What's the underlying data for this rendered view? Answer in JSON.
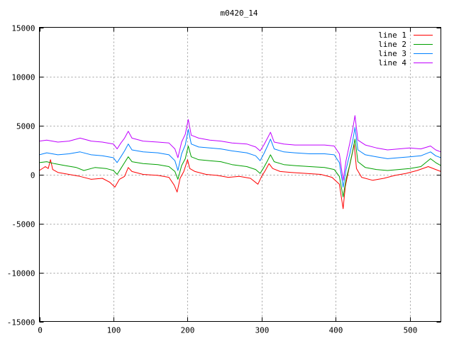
{
  "chart_data": {
    "type": "line",
    "title": "m0420_14",
    "xlabel": "",
    "ylabel": "",
    "xlim": [
      0,
      542
    ],
    "ylim": [
      -15000,
      15000
    ],
    "x_ticks": [
      0,
      100,
      200,
      300,
      400,
      500
    ],
    "y_ticks": [
      -15000,
      -10000,
      -5000,
      0,
      5000,
      10000,
      15000
    ],
    "grid": true,
    "legend_position": "top-right",
    "series": [
      {
        "name": "line 1",
        "color": "#ff0000",
        "points": [
          [
            0,
            400
          ],
          [
            8,
            800
          ],
          [
            12,
            600
          ],
          [
            15,
            1500
          ],
          [
            18,
            500
          ],
          [
            25,
            200
          ],
          [
            40,
            0
          ],
          [
            55,
            -200
          ],
          [
            70,
            -500
          ],
          [
            85,
            -400
          ],
          [
            95,
            -800
          ],
          [
            102,
            -1300
          ],
          [
            108,
            -500
          ],
          [
            115,
            -200
          ],
          [
            120,
            700
          ],
          [
            125,
            300
          ],
          [
            140,
            0
          ],
          [
            160,
            -100
          ],
          [
            175,
            -300
          ],
          [
            182,
            -1100
          ],
          [
            186,
            -1800
          ],
          [
            190,
            -400
          ],
          [
            195,
            300
          ],
          [
            200,
            1500
          ],
          [
            203,
            600
          ],
          [
            210,
            300
          ],
          [
            225,
            0
          ],
          [
            240,
            -100
          ],
          [
            255,
            -300
          ],
          [
            270,
            -200
          ],
          [
            285,
            -400
          ],
          [
            295,
            -1000
          ],
          [
            300,
            -200
          ],
          [
            305,
            400
          ],
          [
            310,
            1100
          ],
          [
            315,
            600
          ],
          [
            325,
            300
          ],
          [
            340,
            200
          ],
          [
            360,
            100
          ],
          [
            380,
            0
          ],
          [
            395,
            -300
          ],
          [
            405,
            -1000
          ],
          [
            410,
            -3500
          ],
          [
            413,
            -1200
          ],
          [
            418,
            600
          ],
          [
            422,
            2000
          ],
          [
            425,
            3100
          ],
          [
            428,
            600
          ],
          [
            435,
            -300
          ],
          [
            450,
            -600
          ],
          [
            465,
            -400
          ],
          [
            480,
            -100
          ],
          [
            495,
            100
          ],
          [
            510,
            400
          ],
          [
            525,
            800
          ],
          [
            535,
            500
          ],
          [
            542,
            300
          ]
        ]
      },
      {
        "name": "line 2",
        "color": "#00a000",
        "points": [
          [
            0,
            1200
          ],
          [
            10,
            1300
          ],
          [
            20,
            1100
          ],
          [
            35,
            900
          ],
          [
            50,
            700
          ],
          [
            60,
            400
          ],
          [
            75,
            700
          ],
          [
            90,
            600
          ],
          [
            100,
            400
          ],
          [
            105,
            0
          ],
          [
            110,
            600
          ],
          [
            115,
            1200
          ],
          [
            120,
            1800
          ],
          [
            125,
            1300
          ],
          [
            140,
            1100
          ],
          [
            160,
            1000
          ],
          [
            175,
            800
          ],
          [
            183,
            300
          ],
          [
            187,
            -500
          ],
          [
            192,
            900
          ],
          [
            197,
            1600
          ],
          [
            201,
            2900
          ],
          [
            205,
            1800
          ],
          [
            215,
            1500
          ],
          [
            230,
            1400
          ],
          [
            245,
            1300
          ],
          [
            260,
            1000
          ],
          [
            280,
            800
          ],
          [
            292,
            500
          ],
          [
            298,
            100
          ],
          [
            303,
            700
          ],
          [
            308,
            1400
          ],
          [
            312,
            2000
          ],
          [
            317,
            1300
          ],
          [
            330,
            1000
          ],
          [
            345,
            900
          ],
          [
            365,
            800
          ],
          [
            385,
            700
          ],
          [
            398,
            500
          ],
          [
            405,
            -200
          ],
          [
            410,
            -2300
          ],
          [
            414,
            -500
          ],
          [
            419,
            1000
          ],
          [
            423,
            2400
          ],
          [
            426,
            3600
          ],
          [
            430,
            1300
          ],
          [
            440,
            700
          ],
          [
            455,
            500
          ],
          [
            470,
            400
          ],
          [
            485,
            500
          ],
          [
            500,
            600
          ],
          [
            515,
            800
          ],
          [
            528,
            1600
          ],
          [
            535,
            1200
          ],
          [
            542,
            900
          ]
        ]
      },
      {
        "name": "line 3",
        "color": "#0080ff",
        "points": [
          [
            0,
            2000
          ],
          [
            10,
            2200
          ],
          [
            25,
            2000
          ],
          [
            40,
            2100
          ],
          [
            55,
            2300
          ],
          [
            70,
            2000
          ],
          [
            85,
            1900
          ],
          [
            100,
            1700
          ],
          [
            105,
            1200
          ],
          [
            110,
            1800
          ],
          [
            115,
            2400
          ],
          [
            120,
            3100
          ],
          [
            125,
            2500
          ],
          [
            140,
            2300
          ],
          [
            160,
            2200
          ],
          [
            175,
            2000
          ],
          [
            183,
            1400
          ],
          [
            187,
            400
          ],
          [
            192,
            2100
          ],
          [
            197,
            3000
          ],
          [
            201,
            4600
          ],
          [
            205,
            3100
          ],
          [
            215,
            2800
          ],
          [
            230,
            2700
          ],
          [
            245,
            2600
          ],
          [
            260,
            2400
          ],
          [
            280,
            2200
          ],
          [
            292,
            1900
          ],
          [
            298,
            1400
          ],
          [
            303,
            2100
          ],
          [
            308,
            2900
          ],
          [
            312,
            3600
          ],
          [
            317,
            2600
          ],
          [
            330,
            2300
          ],
          [
            345,
            2200
          ],
          [
            365,
            2100
          ],
          [
            385,
            2100
          ],
          [
            398,
            2000
          ],
          [
            405,
            1200
          ],
          [
            410,
            -1300
          ],
          [
            414,
            500
          ],
          [
            419,
            2100
          ],
          [
            423,
            3400
          ],
          [
            426,
            4800
          ],
          [
            430,
            2500
          ],
          [
            440,
            2000
          ],
          [
            455,
            1800
          ],
          [
            470,
            1600
          ],
          [
            485,
            1700
          ],
          [
            500,
            1800
          ],
          [
            515,
            1900
          ],
          [
            528,
            2300
          ],
          [
            535,
            1900
          ],
          [
            542,
            1700
          ]
        ]
      },
      {
        "name": "line 4",
        "color": "#c000ff",
        "points": [
          [
            0,
            3400
          ],
          [
            10,
            3500
          ],
          [
            25,
            3300
          ],
          [
            40,
            3400
          ],
          [
            55,
            3700
          ],
          [
            70,
            3400
          ],
          [
            85,
            3300
          ],
          [
            100,
            3100
          ],
          [
            105,
            2600
          ],
          [
            110,
            3200
          ],
          [
            115,
            3700
          ],
          [
            120,
            4400
          ],
          [
            125,
            3700
          ],
          [
            140,
            3400
          ],
          [
            160,
            3300
          ],
          [
            175,
            3200
          ],
          [
            183,
            2600
          ],
          [
            187,
            1700
          ],
          [
            192,
            3300
          ],
          [
            197,
            4100
          ],
          [
            201,
            5600
          ],
          [
            205,
            4000
          ],
          [
            215,
            3700
          ],
          [
            230,
            3500
          ],
          [
            245,
            3400
          ],
          [
            260,
            3200
          ],
          [
            280,
            3100
          ],
          [
            292,
            2800
          ],
          [
            298,
            2400
          ],
          [
            303,
            3000
          ],
          [
            308,
            3700
          ],
          [
            312,
            4300
          ],
          [
            317,
            3300
          ],
          [
            330,
            3100
          ],
          [
            345,
            3000
          ],
          [
            365,
            3000
          ],
          [
            385,
            3000
          ],
          [
            398,
            2900
          ],
          [
            405,
            2100
          ],
          [
            410,
            -600
          ],
          [
            414,
            1400
          ],
          [
            419,
            3200
          ],
          [
            423,
            4600
          ],
          [
            426,
            6000
          ],
          [
            430,
            3500
          ],
          [
            440,
            3000
          ],
          [
            455,
            2700
          ],
          [
            470,
            2500
          ],
          [
            485,
            2600
          ],
          [
            500,
            2700
          ],
          [
            515,
            2600
          ],
          [
            528,
            2900
          ],
          [
            535,
            2500
          ],
          [
            542,
            2300
          ]
        ]
      }
    ]
  }
}
